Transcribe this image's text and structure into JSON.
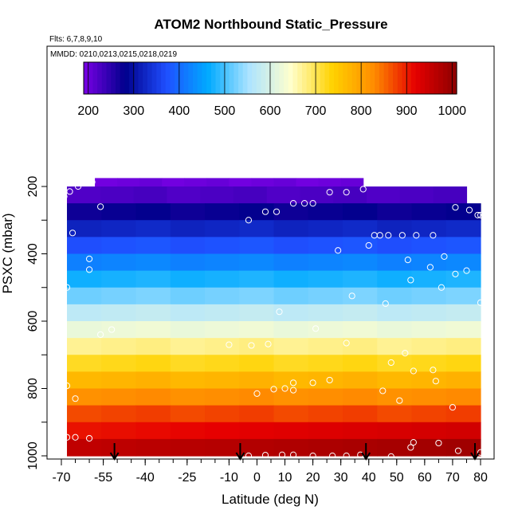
{
  "chart_data": {
    "type": "heatmap",
    "title": "ATOM2 Northbound Static_Pressure",
    "subtitle_flights": "Flts: 6,7,8,9,10",
    "subtitle_dates": "MMDD: 0210,0213,0215,0218,0219",
    "xlabel": "Latitude (deg N)",
    "ylabel": "PSXC (mbar)",
    "xlim": [
      -70,
      82
    ],
    "ylim": [
      1000,
      150
    ],
    "x_ticks": [
      -70,
      -55,
      -40,
      -25,
      -10,
      0,
      10,
      20,
      30,
      40,
      50,
      60,
      70,
      80
    ],
    "y_ticks": [
      200,
      400,
      600,
      800,
      1000
    ],
    "colorbar": {
      "range": [
        190,
        1010
      ],
      "ticks": [
        200,
        300,
        400,
        500,
        600,
        700,
        800,
        900,
        1000
      ],
      "stops": [
        "#7a00e6",
        "#00008c",
        "#1f4fff",
        "#00aaff",
        "#aee4ff",
        "#ffffcc",
        "#ffd200",
        "#ff8c00",
        "#e60000",
        "#8c0000"
      ]
    },
    "grid": false,
    "bins": [
      {
        "p": 200,
        "x": [
          -58,
          38
        ]
      },
      {
        "p": 225,
        "x": [
          -68,
          75
        ]
      },
      {
        "p": 275,
        "x": [
          -68,
          80
        ]
      },
      {
        "p": 325,
        "x": [
          -68,
          80
        ]
      },
      {
        "p": 375,
        "x": [
          -68,
          80
        ]
      },
      {
        "p": 425,
        "x": [
          -68,
          80
        ]
      },
      {
        "p": 475,
        "x": [
          -68,
          80
        ]
      },
      {
        "p": 525,
        "x": [
          -68,
          80
        ]
      },
      {
        "p": 575,
        "x": [
          -68,
          80
        ]
      },
      {
        "p": 625,
        "x": [
          -68,
          80
        ]
      },
      {
        "p": 675,
        "x": [
          -68,
          80
        ]
      },
      {
        "p": 725,
        "x": [
          -68,
          80
        ]
      },
      {
        "p": 775,
        "x": [
          -68,
          80
        ]
      },
      {
        "p": 825,
        "x": [
          -68,
          80
        ]
      },
      {
        "p": 875,
        "x": [
          -68,
          80
        ]
      },
      {
        "p": 925,
        "x": [
          -68,
          80
        ]
      },
      {
        "p": 975,
        "x": [
          -68,
          80
        ]
      }
    ],
    "series": [
      {
        "values": [
          [
            -64,
            200
          ],
          [
            -61,
            187
          ],
          [
            -59,
            187
          ],
          [
            -69,
            230
          ],
          [
            -67,
            215
          ],
          [
            -70,
            243
          ],
          [
            -56,
            260
          ],
          [
            -3,
            300
          ],
          [
            3,
            275
          ],
          [
            7,
            275
          ],
          [
            13,
            250
          ],
          [
            17,
            250
          ],
          [
            20,
            250
          ],
          [
            26,
            217
          ],
          [
            32,
            217
          ],
          [
            38,
            208
          ],
          [
            71,
            262
          ],
          [
            76,
            270
          ],
          [
            79,
            285
          ],
          [
            80,
            285
          ],
          [
            -66,
            338
          ],
          [
            -60,
            447
          ],
          [
            29,
            390
          ],
          [
            40,
            375
          ],
          [
            42,
            345
          ],
          [
            44,
            345
          ],
          [
            47,
            345
          ],
          [
            52,
            345
          ],
          [
            57,
            345
          ],
          [
            63,
            345
          ],
          [
            54,
            418
          ],
          [
            67,
            408
          ],
          [
            62,
            440
          ],
          [
            71,
            460
          ],
          [
            75,
            450
          ],
          [
            55,
            478
          ],
          [
            -68,
            500
          ],
          [
            -60,
            415
          ],
          [
            34,
            525
          ],
          [
            46,
            548
          ],
          [
            66,
            500
          ],
          [
            80,
            545
          ],
          [
            8,
            572
          ],
          [
            -52,
            625
          ],
          [
            -56,
            640
          ],
          [
            21,
            622
          ],
          [
            -2,
            672
          ],
          [
            -10,
            670
          ],
          [
            4,
            668
          ],
          [
            32,
            665
          ],
          [
            48,
            723
          ],
          [
            53,
            695
          ],
          [
            56,
            748
          ],
          [
            63,
            745
          ],
          [
            -68,
            792
          ],
          [
            -65,
            830
          ],
          [
            0,
            815
          ],
          [
            6,
            802
          ],
          [
            10,
            800
          ],
          [
            13,
            805
          ],
          [
            13,
            783
          ],
          [
            20,
            783
          ],
          [
            26,
            775
          ],
          [
            45,
            807
          ],
          [
            51,
            836
          ],
          [
            64,
            778
          ],
          [
            70,
            856
          ],
          [
            -68,
            945
          ],
          [
            -65,
            945
          ],
          [
            -60,
            948
          ],
          [
            -3,
            1000
          ],
          [
            3,
            998
          ],
          [
            9,
            997
          ],
          [
            13,
            997
          ],
          [
            20,
            1000
          ],
          [
            27,
            1000
          ],
          [
            32,
            1000
          ],
          [
            37,
            997
          ],
          [
            48,
            1002
          ],
          [
            55,
            975
          ],
          [
            56,
            960
          ],
          [
            65,
            962
          ],
          [
            72,
            985
          ],
          [
            80,
            990
          ]
        ]
      }
    ],
    "markers_x": [
      -51,
      -6,
      39,
      78
    ]
  }
}
